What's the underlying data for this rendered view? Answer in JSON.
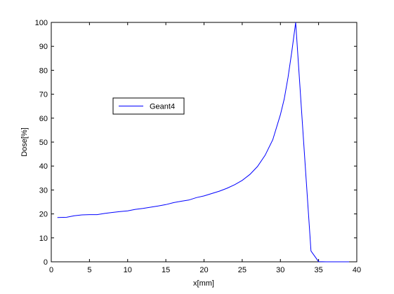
{
  "chart_data": {
    "type": "line",
    "xlabel": "x[mm]",
    "ylabel": "Dose[%]",
    "xlim": [
      0,
      40
    ],
    "ylim": [
      0,
      100
    ],
    "xticks": [
      0,
      5,
      10,
      15,
      20,
      25,
      30,
      35,
      40
    ],
    "yticks": [
      0,
      10,
      20,
      30,
      40,
      50,
      60,
      70,
      80,
      90,
      100
    ],
    "grid": false,
    "legend_position": "upper-left inside axes",
    "series": [
      {
        "name": "Geant4",
        "color": "#0000ff",
        "x": [
          0.8,
          2.0,
          3.0,
          4.0,
          5.0,
          6.0,
          7.0,
          8.0,
          9.0,
          10.0,
          11.0,
          12.0,
          13.0,
          14.0,
          15.0,
          16.0,
          17.0,
          18.0,
          19.0,
          20.0,
          21.0,
          22.0,
          23.0,
          24.0,
          25.0,
          26.0,
          27.0,
          28.0,
          29.0,
          30.0,
          30.5,
          31.0,
          31.5,
          32.0,
          33.0,
          34.0,
          35.0,
          36.0,
          37.0,
          38.0,
          39.0
        ],
        "y": [
          18.5,
          18.6,
          19.2,
          19.6,
          19.7,
          19.7,
          20.2,
          20.6,
          21.0,
          21.3,
          21.9,
          22.3,
          22.8,
          23.3,
          23.9,
          24.7,
          25.3,
          25.8,
          26.8,
          27.5,
          28.5,
          29.5,
          30.7,
          32.2,
          34.0,
          36.5,
          39.8,
          44.5,
          51.0,
          61.5,
          68.0,
          77.0,
          88.0,
          100.0,
          52.0,
          4.5,
          0.1,
          0.0,
          0.0,
          0.0,
          0.0
        ]
      }
    ]
  }
}
